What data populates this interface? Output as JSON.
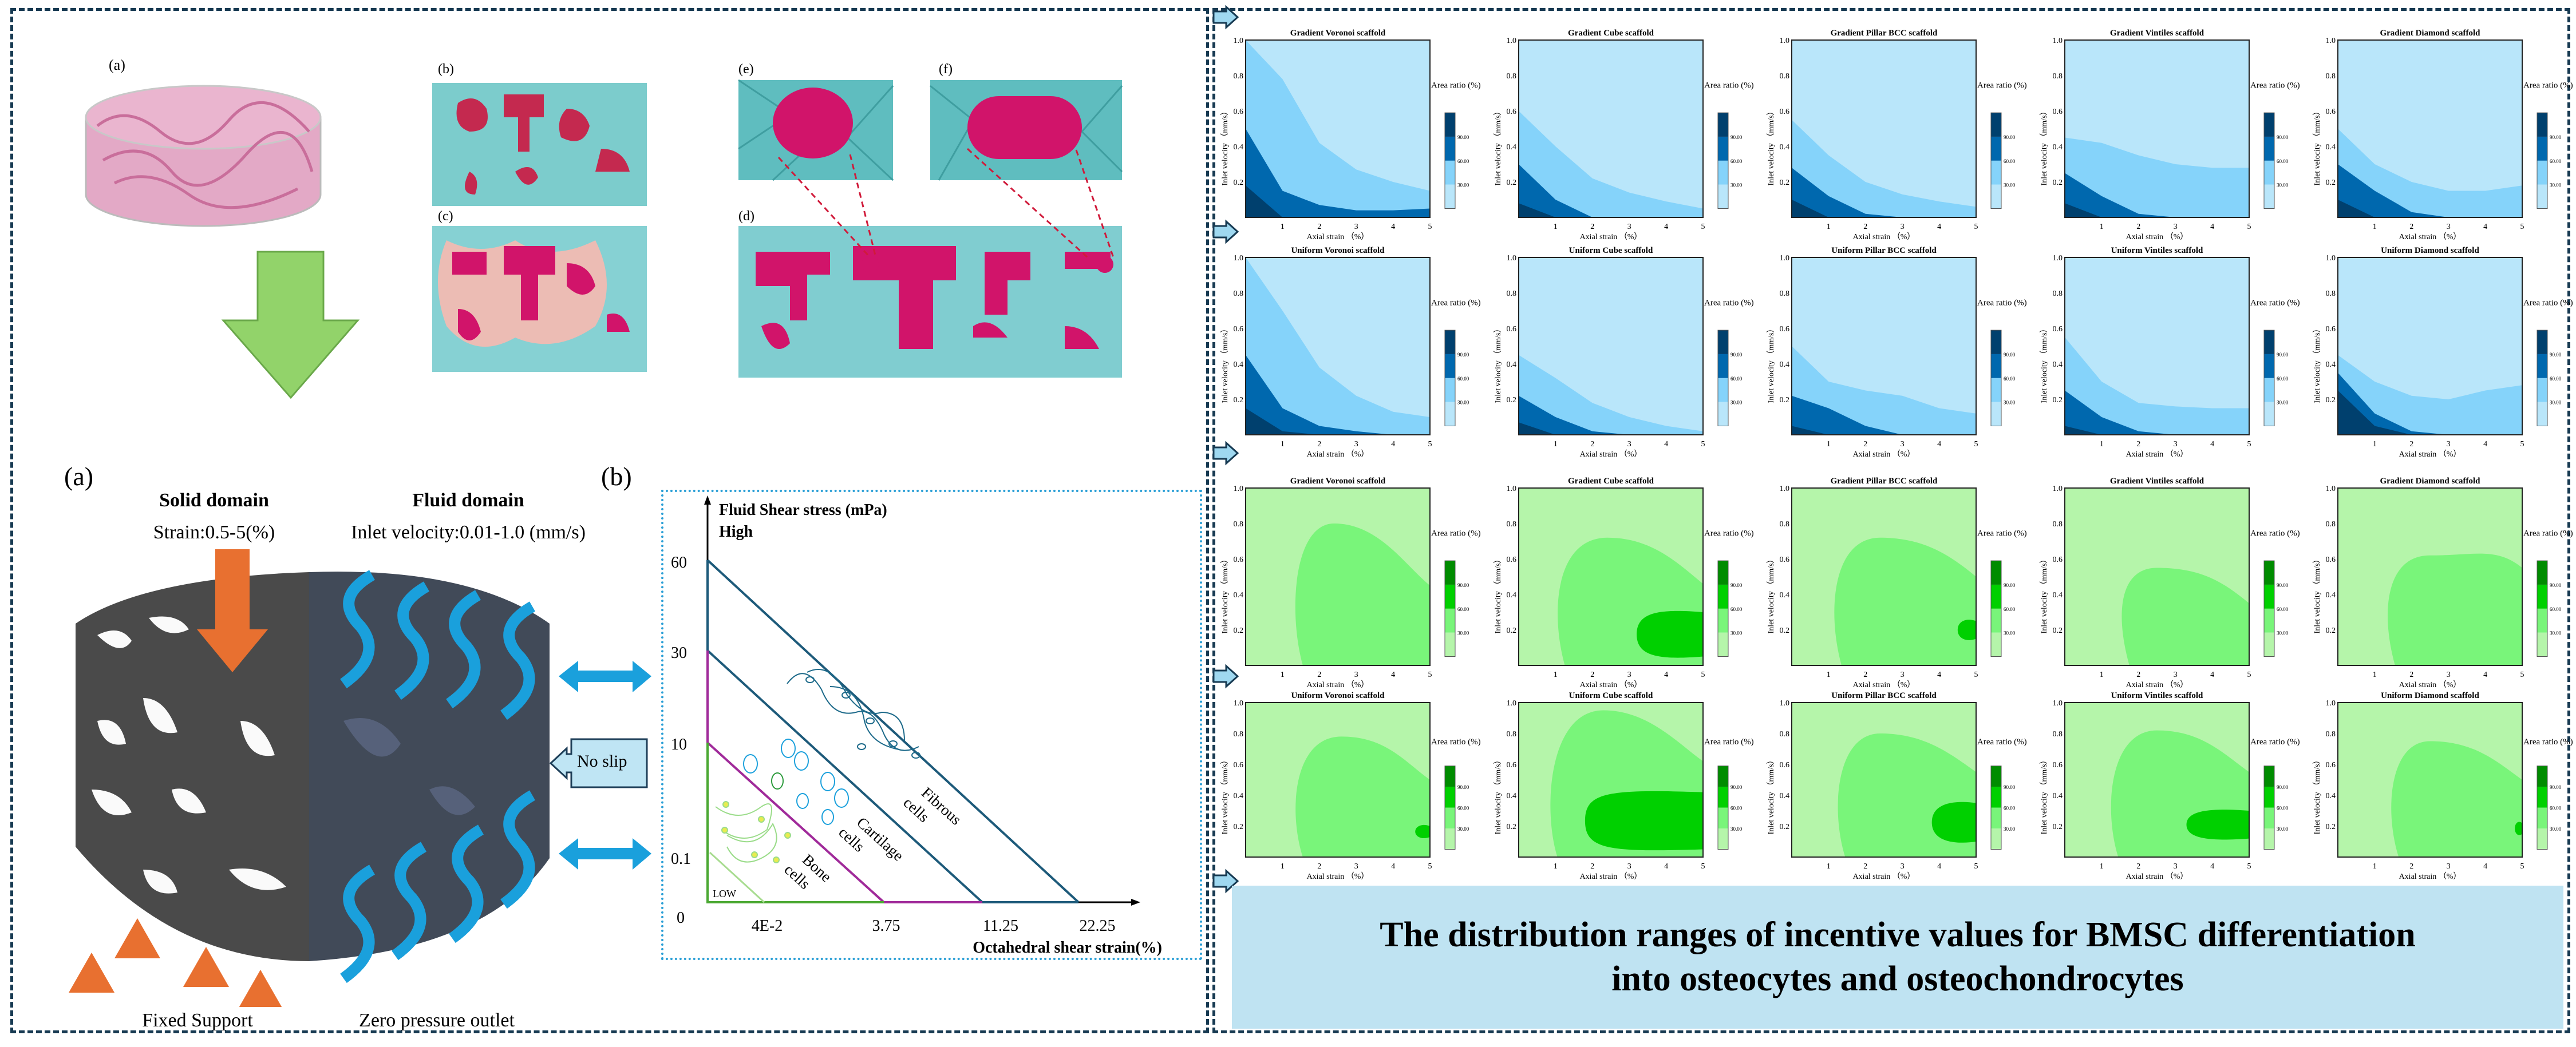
{
  "micro_images": {
    "label_a": "(a)",
    "label_b": "(b)",
    "label_c": "(c)",
    "label_d": "(d)",
    "label_e": "(e)",
    "label_f": "(f)"
  },
  "setup": {
    "label_a": "(a)",
    "label_b": "(b)",
    "solid_title": "Solid domain",
    "solid_sub": "Strain:0.5-5(%)",
    "fluid_title": "Fluid domain",
    "fluid_sub": "Inlet velocity:0.01-1.0 (mm/s)",
    "no_slip": "No slip",
    "fixed_support": "Fixed Support",
    "outlet": "Zero pressure outlet"
  },
  "mechanoregulation": {
    "y_title": "Fluid Shear stress (mPa)",
    "high": "High",
    "low": "LOW",
    "y_ticks": [
      "60",
      "30",
      "10",
      "0.1",
      "0"
    ],
    "x_ticks": [
      "4E-2",
      "3.75",
      "11.25",
      "22.25"
    ],
    "x_label": "Octahedral shear strain(%)",
    "regions": [
      {
        "line1": "Bone",
        "line2": "cells"
      },
      {
        "line1": "Cartilage",
        "line2": "cells"
      },
      {
        "line1": "Fibrous",
        "line2": "cells"
      }
    ]
  },
  "contour_plots": {
    "x_label": "Axial strain （%）",
    "y_label": "Inlet velocity （mm/s）",
    "colorbar_label": "Area ratio (%)",
    "colorbar_ticks": [
      "30.00",
      "60.00",
      "90.00"
    ],
    "x_ticks": [
      "1",
      "2",
      "3",
      "4",
      "5"
    ],
    "y_ticks": [
      "0.2",
      "0.4",
      "0.6",
      "0.8",
      "1.0"
    ],
    "x_range": [
      0,
      5
    ],
    "y_range": [
      0,
      1
    ],
    "blue_levels": [
      "#b9e6fa",
      "#85d3fa",
      "#0068ae",
      "#00406e"
    ],
    "green_levels": [
      "#b5f5aa",
      "#79f57a",
      "#00d000",
      "#008c00"
    ],
    "rows": [
      {
        "scheme": "blue",
        "plots": [
          {
            "title": "Gradient Voronoi scaffold",
            "b30": [
              1.0,
              0.78,
              0.42,
              0.27,
              0.2,
              0.15
            ],
            "b60": [
              0.5,
              0.15,
              0.07,
              0.04,
              0.04,
              0.05
            ],
            "b90": [
              0.18,
              0,
              0,
              0,
              0,
              0
            ]
          },
          {
            "title": "Gradient Cube scaffold",
            "b30": [
              0.6,
              0.4,
              0.22,
              0.14,
              0.09,
              0.05
            ],
            "b60": [
              0.3,
              0.1,
              0,
              0,
              0,
              0
            ],
            "b90": [
              0.08,
              0,
              0,
              0,
              0,
              0
            ]
          },
          {
            "title": "Gradient  Pillar BCC scaffold",
            "b30": [
              0.55,
              0.35,
              0.2,
              0.13,
              0.09,
              0.06
            ],
            "b60": [
              0.28,
              0.12,
              0.02,
              0,
              0,
              0
            ],
            "b90": [
              0.1,
              0,
              0,
              0,
              0,
              0
            ]
          },
          {
            "title": "Gradient Vintiles scaffold",
            "b30": [
              0.45,
              0.42,
              0.35,
              0.3,
              0.28,
              0.28
            ],
            "b60": [
              0.25,
              0.12,
              0.02,
              0,
              0,
              0
            ],
            "b90": [
              0.08,
              0,
              0,
              0,
              0,
              0
            ]
          },
          {
            "title": "Gradient Diamond scaffold",
            "b30": [
              0.5,
              0.3,
              0.2,
              0.15,
              0.15,
              0.18
            ],
            "b60": [
              0.3,
              0.15,
              0.03,
              0,
              0,
              0
            ],
            "b90": [
              0.1,
              0,
              0,
              0,
              0,
              0
            ]
          }
        ]
      },
      {
        "scheme": "blue",
        "plots": [
          {
            "title": "Uniform Voronoi scaffold",
            "b30": [
              1.0,
              0.7,
              0.38,
              0.22,
              0.13,
              0.1
            ],
            "b60": [
              0.45,
              0.15,
              0.05,
              0.02,
              0,
              0
            ],
            "b90": [
              0.15,
              0.02,
              0,
              0,
              0,
              0
            ]
          },
          {
            "title": "Uniform Cube scaffold",
            "b30": [
              0.45,
              0.32,
              0.18,
              0.1,
              0.05,
              0.02
            ],
            "b60": [
              0.22,
              0.1,
              0.02,
              0,
              0,
              0
            ],
            "b90": [
              0.07,
              0,
              0,
              0,
              0,
              0
            ]
          },
          {
            "title": "Uniform  Pillar BCC scaffold",
            "b30": [
              0.5,
              0.3,
              0.25,
              0.22,
              0.15,
              0.12
            ],
            "b60": [
              0.22,
              0.15,
              0.05,
              0,
              0,
              0
            ],
            "b90": [
              0.05,
              0,
              0,
              0,
              0,
              0
            ]
          },
          {
            "title": "Uniform Vintiles scaffold",
            "b30": [
              0.55,
              0.3,
              0.18,
              0.16,
              0.15,
              0.15
            ],
            "b60": [
              0.25,
              0.1,
              0.02,
              0,
              0,
              0
            ],
            "b90": [
              0.05,
              0,
              0,
              0,
              0,
              0
            ]
          },
          {
            "title": "Uniform Diamond scaffold",
            "b30": [
              0.45,
              0.3,
              0.22,
              0.2,
              0.25,
              0.28
            ],
            "b60": [
              0.35,
              0.12,
              0.02,
              0,
              0,
              0
            ],
            "b90": [
              0.25,
              0.05,
              0,
              0,
              0,
              0
            ]
          }
        ]
      },
      {
        "scheme": "green",
        "plots": [
          {
            "title": "Gradient Voronoi scaffold",
            "r30": {
              "left": 1.3,
              "peak_s": 2.4,
              "peak_v": 0.8,
              "right_v": 0.45
            },
            "r60": null
          },
          {
            "title": "Gradient Cube scaffold",
            "r30": {
              "left": 1.0,
              "peak_s": 2.4,
              "peak_v": 0.72,
              "right_v": 0.46
            },
            "r60": {
              "s0": 3.2,
              "v": [
                0.05,
                0.3
              ]
            }
          },
          {
            "title": "Gradient  Pillar BCC scaffold",
            "r30": {
              "left": 1.1,
              "peak_s": 2.4,
              "peak_v": 0.72,
              "right_v": 0.5
            },
            "r60": {
              "s0": 4.5,
              "v": [
                0.15,
                0.25
              ]
            }
          },
          {
            "title": "Gradient Vintiles scaffold",
            "r30": {
              "left": 1.5,
              "peak_s": 2.5,
              "peak_v": 0.55,
              "right_v": 0.35
            },
            "r60": null
          },
          {
            "title": "Gradient Diamond scaffold",
            "r30": {
              "left": 1.3,
              "peak_s": 2.5,
              "peak_v": 0.62,
              "right_v": 0.55
            },
            "r60": null
          }
        ]
      },
      {
        "scheme": "green",
        "plots": [
          {
            "title": "Uniform Voronoi scaffold",
            "r30": {
              "left": 1.3,
              "peak_s": 2.6,
              "peak_v": 0.78,
              "right_v": 0.5
            },
            "r60": {
              "s0": 4.6,
              "v": [
                0.13,
                0.2
              ]
            }
          },
          {
            "title": "Uniform Cube scaffold",
            "r30": {
              "left": 0.8,
              "peak_s": 2.3,
              "peak_v": 0.95,
              "right_v": 0.62
            },
            "r60": {
              "s0": 1.8,
              "v": [
                0.05,
                0.42
              ]
            }
          },
          {
            "title": "Uniform  Pillar BCC scaffold",
            "r30": {
              "left": 1.2,
              "peak_s": 2.4,
              "peak_v": 0.8,
              "right_v": 0.55
            },
            "r60": {
              "s0": 3.8,
              "v": [
                0.1,
                0.35
              ]
            }
          },
          {
            "title": "Uniform Vintiles scaffold",
            "r30": {
              "left": 1.2,
              "peak_s": 2.5,
              "peak_v": 0.82,
              "right_v": 0.55
            },
            "r60": {
              "s0": 3.3,
              "v": [
                0.12,
                0.3
              ]
            }
          },
          {
            "title": "Uniform Diamond scaffold",
            "r30": {
              "left": 1.4,
              "peak_s": 2.5,
              "peak_v": 0.75,
              "right_v": 0.5
            },
            "r60": {
              "s0": 4.8,
              "v": [
                0.15,
                0.22
              ]
            }
          }
        ]
      }
    ]
  },
  "banner": {
    "line1": "The distribution ranges of incentive values for BMSC differentiation",
    "line2": "into osteocytes and osteochondrocytes"
  },
  "colors": {
    "border": "#173a52",
    "pink": "#e89ac0",
    "magenta": "#d1146a",
    "teal": "#7fcfd0",
    "orange": "#e87030",
    "flow_blue": "#1aa0dc",
    "arrow_green": "#8fd468"
  }
}
